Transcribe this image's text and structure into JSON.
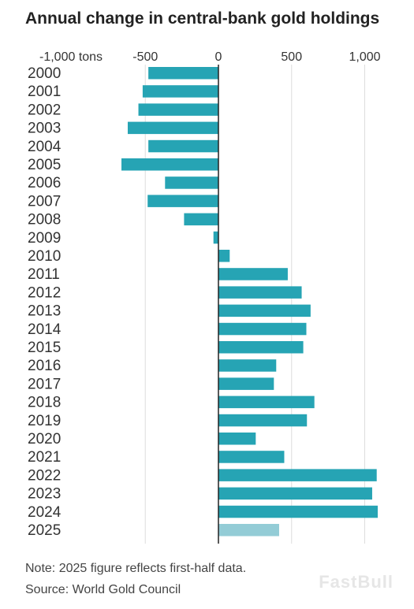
{
  "title": "Annual change in central-bank gold holdings",
  "note": "Note: 2025 figure reflects first-half data.",
  "source": "Source: World Gold Council",
  "watermark": "FastBull",
  "colors": {
    "bar": "#26a4b4",
    "bar_partial": "#93ccd6",
    "grid": "#dddddd",
    "zero_line": "#222222"
  },
  "chart_data": {
    "type": "bar",
    "orientation": "horizontal",
    "title": "Annual change in central-bank gold holdings",
    "xlim": [
      -1000,
      1000
    ],
    "x_ticks": [
      -1000,
      -500,
      0,
      500,
      1000
    ],
    "x_tick_labels": [
      "-1,000 tons",
      "-500",
      "0",
      "500",
      "1,000"
    ],
    "categories": [
      "2000",
      "2001",
      "2002",
      "2003",
      "2004",
      "2005",
      "2006",
      "2007",
      "2008",
      "2009",
      "2010",
      "2011",
      "2012",
      "2013",
      "2014",
      "2015",
      "2016",
      "2017",
      "2018",
      "2019",
      "2020",
      "2021",
      "2022",
      "2023",
      "2024",
      "2025"
    ],
    "values": [
      -479,
      -518,
      -547,
      -620,
      -479,
      -663,
      -365,
      -484,
      -235,
      -34,
      77,
      474,
      569,
      630,
      601,
      580,
      395,
      379,
      656,
      605,
      255,
      450,
      1082,
      1051,
      1089,
      415
    ],
    "partial_categories": [
      "2025"
    ],
    "grid": true
  }
}
